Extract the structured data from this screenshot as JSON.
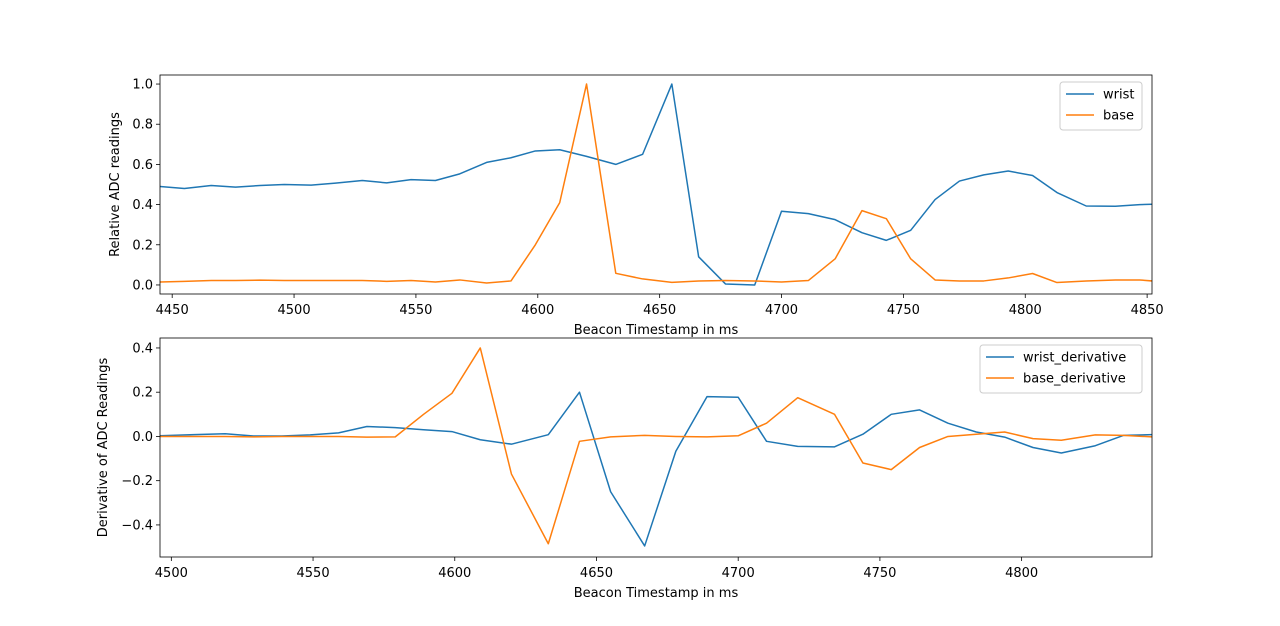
{
  "chart_data": [
    {
      "type": "line",
      "xlabel": "Beacon Timestamp in ms",
      "ylabel": "Relative ADC readings",
      "xlim": [
        4445,
        4852
      ],
      "ylim": [
        -0.045,
        1.045
      ],
      "xticks": [
        4450,
        4500,
        4550,
        4600,
        4650,
        4700,
        4750,
        4800,
        4850
      ],
      "yticks": [
        0.0,
        0.2,
        0.4,
        0.6,
        0.8,
        1.0
      ],
      "ytick_labels": [
        "0.0",
        "0.2",
        "0.4",
        "0.6",
        "0.8",
        "1.0"
      ],
      "grid": false,
      "legend_position": "top-right",
      "series": [
        {
          "name": "wrist",
          "color": "#1f77b4",
          "x": [
            4445,
            4455,
            4466,
            4476,
            4486,
            4496,
            4507,
            4517,
            4528,
            4538,
            4548,
            4558,
            4568,
            4579,
            4589,
            4599,
            4609,
            4620,
            4632,
            4643,
            4655,
            4666,
            4677,
            4689,
            4700,
            4711,
            4722,
            4733,
            4743,
            4753,
            4763,
            4773,
            4783,
            4793,
            4803,
            4813,
            4825,
            4837,
            4847,
            4852
          ],
          "y": [
            0.49,
            0.48,
            0.495,
            0.487,
            0.495,
            0.5,
            0.497,
            0.507,
            0.52,
            0.508,
            0.524,
            0.52,
            0.553,
            0.61,
            0.633,
            0.667,
            0.673,
            0.64,
            0.6,
            0.65,
            1.0,
            0.14,
            0.005,
            0.0,
            0.367,
            0.355,
            0.325,
            0.26,
            0.222,
            0.272,
            0.425,
            0.517,
            0.548,
            0.567,
            0.545,
            0.46,
            0.393,
            0.392,
            0.4,
            0.402
          ]
        },
        {
          "name": "base",
          "color": "#ff7f0e",
          "x": [
            4445,
            4455,
            4466,
            4476,
            4486,
            4496,
            4507,
            4517,
            4528,
            4538,
            4548,
            4558,
            4568,
            4579,
            4589,
            4599,
            4609,
            4620,
            4632,
            4643,
            4655,
            4666,
            4677,
            4689,
            4700,
            4711,
            4722,
            4733,
            4743,
            4753,
            4763,
            4773,
            4783,
            4793,
            4803,
            4813,
            4825,
            4837,
            4847,
            4852
          ],
          "y": [
            0.015,
            0.018,
            0.022,
            0.022,
            0.024,
            0.022,
            0.022,
            0.022,
            0.022,
            0.018,
            0.022,
            0.015,
            0.025,
            0.01,
            0.02,
            0.2,
            0.41,
            1.0,
            0.058,
            0.03,
            0.013,
            0.02,
            0.022,
            0.02,
            0.015,
            0.022,
            0.13,
            0.37,
            0.33,
            0.13,
            0.025,
            0.02,
            0.02,
            0.035,
            0.057,
            0.012,
            0.02,
            0.025,
            0.025,
            0.02
          ]
        }
      ]
    },
    {
      "type": "line",
      "xlabel": "Beacon Timestamp in ms",
      "ylabel": "Derivative of ADC Readings",
      "xlim": [
        4496,
        4846
      ],
      "ylim": [
        -0.545,
        0.445
      ],
      "xticks": [
        4500,
        4550,
        4600,
        4650,
        4700,
        4750,
        4800
      ],
      "yticks": [
        -0.4,
        -0.2,
        0.0,
        0.2,
        0.4
      ],
      "ytick_labels": [
        "−0.4",
        "−0.2",
        "0.0",
        "0.2",
        "0.4"
      ],
      "grid": false,
      "legend_position": "top-right",
      "series": [
        {
          "name": "wrist_derivative",
          "color": "#1f77b4",
          "x": [
            4496,
            4508,
            4519,
            4529,
            4539,
            4549,
            4559,
            4569,
            4579,
            4589,
            4599,
            4609,
            4620,
            4633,
            4644,
            4655,
            4667,
            4678,
            4689,
            4700,
            4710,
            4721,
            4734,
            4744,
            4754,
            4764,
            4774,
            4784,
            4794,
            4804,
            4814,
            4826,
            4836,
            4846
          ],
          "y": [
            0.003,
            0.008,
            0.012,
            0.002,
            0.002,
            0.007,
            0.016,
            0.045,
            0.04,
            0.03,
            0.022,
            -0.015,
            -0.035,
            0.008,
            0.2,
            -0.25,
            -0.495,
            -0.067,
            0.18,
            0.177,
            -0.022,
            -0.045,
            -0.047,
            0.01,
            0.1,
            0.12,
            0.06,
            0.02,
            -0.003,
            -0.05,
            -0.075,
            -0.042,
            0.005,
            0.008
          ]
        },
        {
          "name": "base_derivative",
          "color": "#ff7f0e",
          "x": [
            4496,
            4508,
            4519,
            4529,
            4539,
            4549,
            4559,
            4569,
            4579,
            4589,
            4599,
            4609,
            4620,
            4633,
            4644,
            4655,
            4667,
            4678,
            4689,
            4700,
            4710,
            4721,
            4734,
            4744,
            4754,
            4764,
            4774,
            4784,
            4794,
            4804,
            4814,
            4826,
            4836,
            4846
          ],
          "y": [
            0.0,
            0.0,
            0.0,
            -0.002,
            0.0,
            0.0,
            0.0,
            -0.003,
            -0.002,
            0.1,
            0.195,
            0.4,
            -0.17,
            -0.485,
            -0.022,
            -0.002,
            0.005,
            0.0,
            -0.002,
            0.003,
            0.06,
            0.175,
            0.1,
            -0.12,
            -0.15,
            -0.05,
            0.0,
            0.01,
            0.02,
            -0.01,
            -0.017,
            0.007,
            0.005,
            -0.002
          ]
        }
      ]
    }
  ]
}
